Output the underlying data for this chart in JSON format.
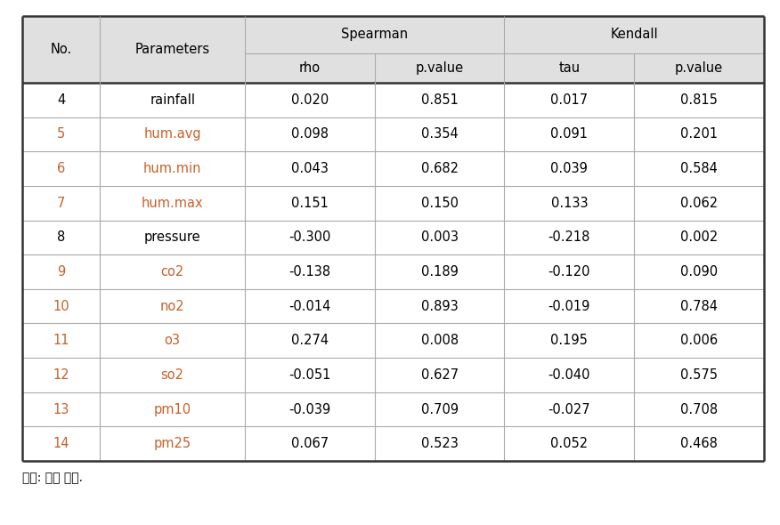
{
  "header_group": [
    "Spearman",
    "Kendall"
  ],
  "headers": [
    "No.",
    "Parameters",
    "rho",
    "p.value",
    "tau",
    "p.value"
  ],
  "rows": [
    [
      "4",
      "rainfall",
      "0.020",
      "0.851",
      "0.017",
      "0.815"
    ],
    [
      "5",
      "hum.avg",
      "0.098",
      "0.354",
      "0.091",
      "0.201"
    ],
    [
      "6",
      "hum.min",
      "0.043",
      "0.682",
      "0.039",
      "0.584"
    ],
    [
      "7",
      "hum.max",
      "0.151",
      "0.150",
      "0.133",
      "0.062"
    ],
    [
      "8",
      "pressure",
      "-0.300",
      "0.003",
      "-0.218",
      "0.002"
    ],
    [
      "9",
      "co2",
      "-0.138",
      "0.189",
      "-0.120",
      "0.090"
    ],
    [
      "10",
      "no2",
      "-0.014",
      "0.893",
      "-0.019",
      "0.784"
    ],
    [
      "11",
      "o3",
      "0.274",
      "0.008",
      "0.195",
      "0.006"
    ],
    [
      "12",
      "so2",
      "-0.051",
      "0.627",
      "-0.040",
      "0.575"
    ],
    [
      "13",
      "pm10",
      "-0.039",
      "0.709",
      "-0.027",
      "0.708"
    ],
    [
      "14",
      "pm25",
      "0.067",
      "0.523",
      "0.052",
      "0.468"
    ]
  ],
  "colored_params": [
    "hum.avg",
    "hum.min",
    "hum.max",
    "co2",
    "no2",
    "o3",
    "so2",
    "pm10",
    "pm25"
  ],
  "colored_nos": [
    "5",
    "6",
    "7",
    "9",
    "10",
    "11",
    "12",
    "13",
    "14"
  ],
  "orange_color": "#C8602A",
  "header_bg": "#E0E0E0",
  "line_color": "#AAAAAA",
  "thick_line_color": "#333333",
  "footer_text": "자료: 저자 작성.",
  "fig_width": 8.76,
  "fig_height": 5.9,
  "dpi": 100
}
